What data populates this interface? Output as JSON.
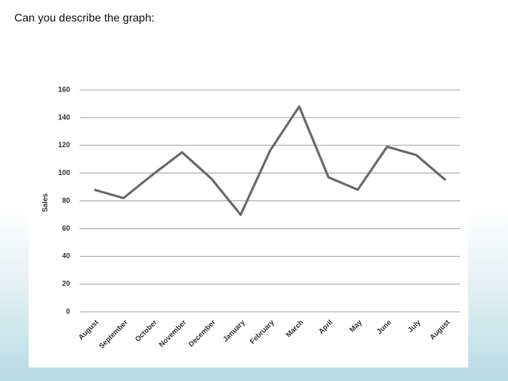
{
  "heading": "Can you describe the graph:",
  "chart_data": {
    "type": "line",
    "y_label": "Sales",
    "categories": [
      "August",
      "September",
      "October",
      "November",
      "December",
      "January",
      "February",
      "March",
      "April",
      "May",
      "June",
      "July",
      "August"
    ],
    "values": [
      88,
      82,
      99,
      115,
      96,
      70,
      116,
      148,
      97,
      88,
      119,
      113,
      95
    ],
    "color": "#6b6b6b",
    "ylim": [
      0,
      160
    ],
    "yticks": [
      0,
      20,
      40,
      60,
      80,
      100,
      120,
      140,
      160
    ],
    "grid": true
  }
}
